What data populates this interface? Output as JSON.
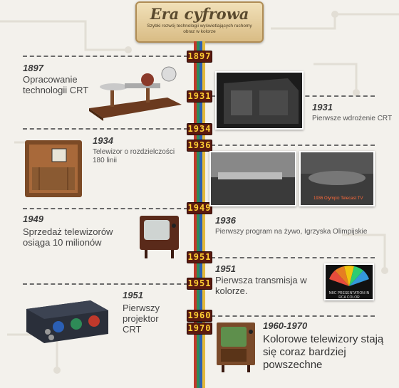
{
  "header": {
    "title": "Era cyfrowa",
    "subtitle": "Szybki rozwój technologii wyświetlających ruchomy obraz w kolorze"
  },
  "timeline_badges": [
    "1897",
    "1931",
    "1934",
    "1936",
    "1949",
    "1951",
    "1951",
    "1960",
    "1970"
  ],
  "events": [
    {
      "year": "1897",
      "text": "Opracowanie technologii CRT"
    },
    {
      "year": "1931",
      "text": "Pierwsze wdrożenie CRT"
    },
    {
      "year": "1934",
      "text": "Telewizor o rozdzielczości 180 linii"
    },
    {
      "year": "1936",
      "text": "Pierwszy program na żywo, Igrzyska Olimpijskie"
    },
    {
      "year": "1949",
      "text": "Sprzedaż telewizorów osiąga 10 milionów"
    },
    {
      "year": "1951",
      "text": "Pierwsza transmisja w kolorze."
    },
    {
      "year": "1951",
      "text": "Pierwszy projektor CRT"
    },
    {
      "year": "1960-1970",
      "text": "Kolorowe telewizory stają się coraz bardziej powszechne"
    }
  ],
  "photo_captions": {
    "olympics_caption": "1936 Olympic Telecast TV",
    "nbc_caption": "NBC PRESENTATION IN RCA COLOR"
  },
  "colors": {
    "spine": [
      "#c0392b",
      "#2e8b57",
      "#2b5fb4",
      "#e3b93a"
    ],
    "badge_bg": "#5a1a10",
    "badge_text": "#ffcf33"
  }
}
